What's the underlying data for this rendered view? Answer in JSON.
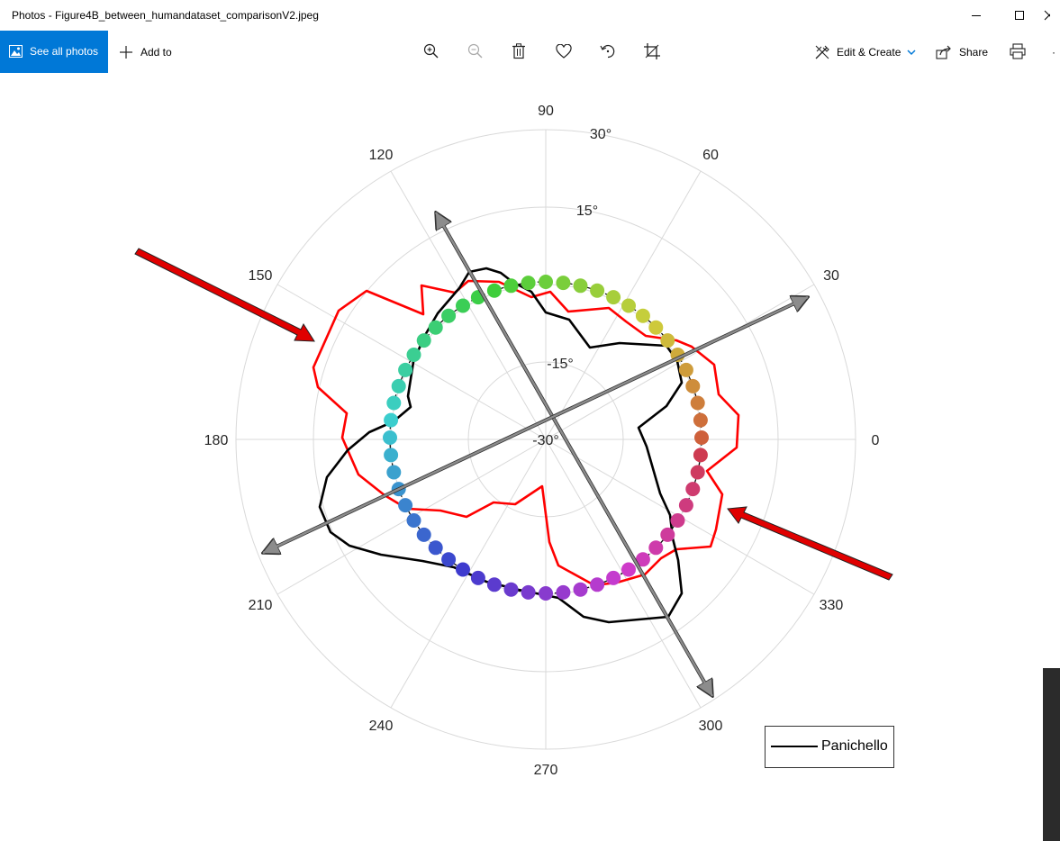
{
  "window": {
    "title": "Photos - Figure4B_between_humandataset_comparisonV2.jpeg"
  },
  "toolbar": {
    "see_all_label": "See all photos",
    "add_to_label": "Add to",
    "edit_create_label": "Edit & Create",
    "share_label": "Share",
    "more_label": "·",
    "icons": [
      "zoom-in-icon",
      "zoom-out-icon",
      "delete-icon",
      "favorite-icon",
      "rotate-icon",
      "crop-icon",
      "print-icon"
    ]
  },
  "chart": {
    "angle_ticks": [
      "0",
      "30",
      "60",
      "90",
      "120",
      "150",
      "180",
      "210",
      "240",
      "270",
      "300",
      "330"
    ],
    "radial_ticks": [
      "30°",
      "15°",
      "-15°",
      "-30°"
    ],
    "legend_label": "Panichello",
    "colors": {
      "red_curve": "#ff0000",
      "black_curve": "#000000",
      "grid": "#d9d9d9",
      "arrow_gray": "#8c8c8c",
      "arrow_red": "#e00000",
      "accent": "#0078d7"
    }
  },
  "chart_data": {
    "type": "polar",
    "angle_ticks_deg": [
      0,
      30,
      60,
      90,
      120,
      150,
      180,
      210,
      240,
      270,
      300,
      330
    ],
    "radial_ticks": [
      "30°",
      "15°",
      "-15°",
      "-30°"
    ],
    "series": [
      {
        "name": "Panichello",
        "color": "#000000"
      }
    ]
  }
}
